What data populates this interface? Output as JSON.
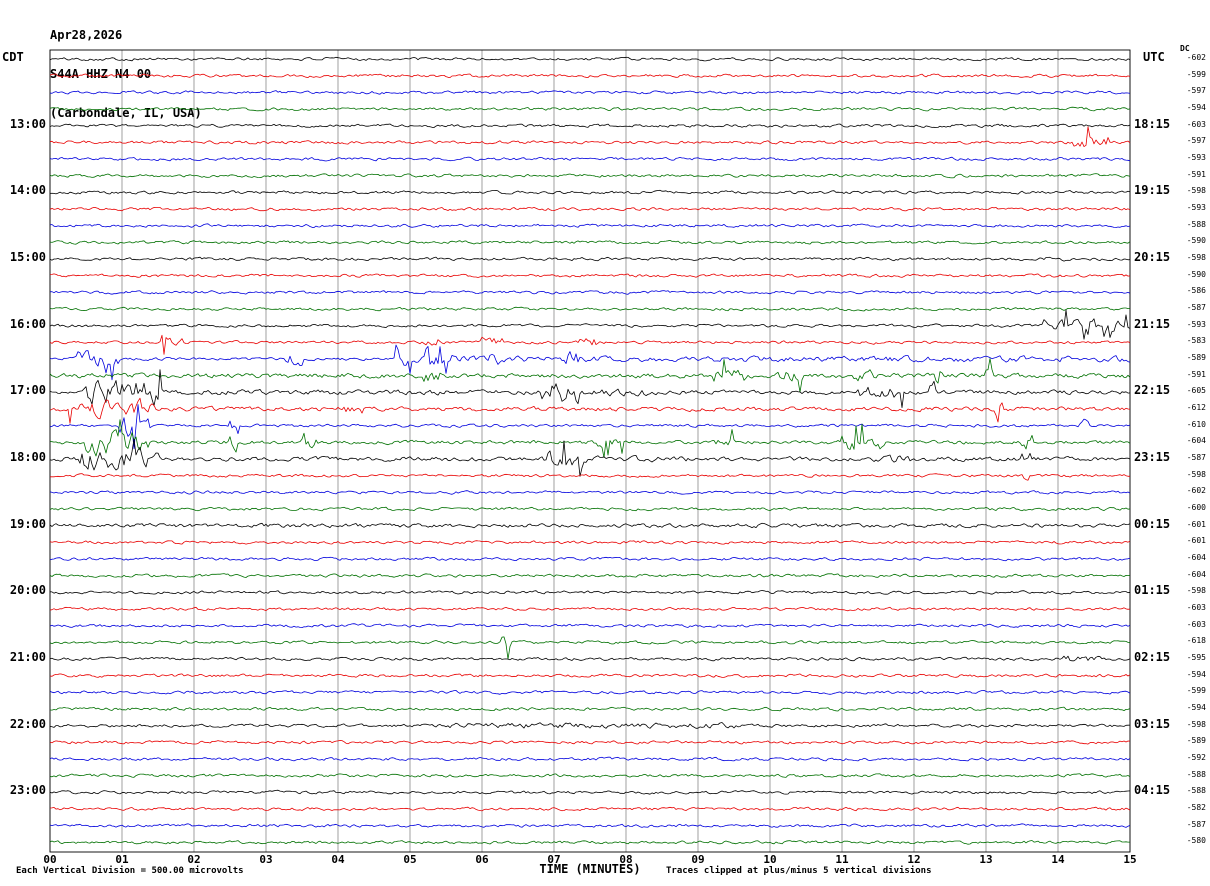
{
  "title": {
    "date": "Apr28,2026",
    "station": "S44A HHZ N4 00",
    "location": "(Carbondale, IL, USA)"
  },
  "axes": {
    "left_label": "CDT",
    "right_label": "UTC",
    "dc_header": "DC",
    "x_axis_label": "TIME (MINUTES)",
    "x_ticks": [
      "00",
      "01",
      "02",
      "03",
      "04",
      "05",
      "06",
      "07",
      "08",
      "09",
      "10",
      "11",
      "12",
      "13",
      "14",
      "15"
    ]
  },
  "footer": {
    "scale_note": "Each Vertical Division =  500.00 microvolts",
    "clip_note": "Traces clipped at plus/minus 5 vertical divisions"
  },
  "colors": {
    "black": "#000000",
    "red": "#e80000",
    "blue": "#0000dd",
    "green": "#007000",
    "grid": "#777777"
  },
  "chart_data": {
    "type": "line",
    "description": "Helicorder seismogram, 48 trace lines of 15 minutes each",
    "row_count": 48,
    "minutes_per_row": 15,
    "base_amp": 1,
    "color_cycle": [
      "black",
      "red",
      "blue",
      "green"
    ],
    "left_time_labels": [
      {
        "row": 4,
        "label": "13:00"
      },
      {
        "row": 8,
        "label": "14:00"
      },
      {
        "row": 12,
        "label": "15:00"
      },
      {
        "row": 16,
        "label": "16:00"
      },
      {
        "row": 20,
        "label": "17:00"
      },
      {
        "row": 24,
        "label": "18:00"
      },
      {
        "row": 28,
        "label": "19:00"
      },
      {
        "row": 32,
        "label": "20:00"
      },
      {
        "row": 36,
        "label": "21:00"
      },
      {
        "row": 40,
        "label": "22:00"
      },
      {
        "row": 44,
        "label": "23:00"
      }
    ],
    "right_time_labels": [
      {
        "row": 4,
        "label": "18:15"
      },
      {
        "row": 8,
        "label": "19:15"
      },
      {
        "row": 12,
        "label": "20:15"
      },
      {
        "row": 16,
        "label": "21:15"
      },
      {
        "row": 20,
        "label": "22:15"
      },
      {
        "row": 24,
        "label": "23:15"
      },
      {
        "row": 28,
        "label": "00:15"
      },
      {
        "row": 32,
        "label": "01:15"
      },
      {
        "row": 36,
        "label": "02:15"
      },
      {
        "row": 40,
        "label": "03:15"
      },
      {
        "row": 44,
        "label": "04:15"
      }
    ],
    "dc_values": [
      -602,
      -599,
      -597,
      -594,
      -603,
      -597,
      -593,
      -591,
      -598,
      -593,
      -588,
      -590,
      -598,
      -590,
      -586,
      -587,
      -593,
      -583,
      -589,
      -591,
      -605,
      -612,
      -610,
      -604,
      -587,
      -598,
      -602,
      -600,
      -601,
      -601,
      -604,
      -604,
      -598,
      -603,
      -603,
      -618,
      -595,
      -594,
      -599,
      -594,
      -598,
      -589,
      -592,
      -588,
      -588,
      -582,
      -587,
      -580
    ],
    "events": [
      {
        "row": 5,
        "s": 14.2,
        "e": 14.7,
        "a": 5
      },
      {
        "row": 12,
        "s": 13.8,
        "e": 14.1,
        "a": 2
      },
      {
        "row": 16,
        "s": 13.8,
        "e": 15.0,
        "a": 4
      },
      {
        "row": 17,
        "s": 1.55,
        "e": 1.85,
        "a": 5
      },
      {
        "row": 17,
        "s": 5.1,
        "e": 5.4,
        "a": 3.5
      },
      {
        "row": 17,
        "s": 6.0,
        "e": 6.3,
        "a": 3.5
      },
      {
        "row": 17,
        "s": 7.35,
        "e": 7.6,
        "a": 3.5
      },
      {
        "row": 18,
        "s": 0.35,
        "e": 0.95,
        "a": 6
      },
      {
        "row": 18,
        "s": 3.2,
        "e": 3.5,
        "a": 4
      },
      {
        "row": 18,
        "s": 4.8,
        "e": 5.0,
        "a": 5
      },
      {
        "row": 18,
        "s": 5.2,
        "e": 5.6,
        "a": 4.5
      },
      {
        "row": 18,
        "s": 6.05,
        "e": 6.25,
        "a": 4.5
      },
      {
        "row": 18,
        "s": 7.15,
        "e": 7.35,
        "a": 5.5
      },
      {
        "row": 18,
        "s": 5.0,
        "e": 15.0,
        "a": 2
      },
      {
        "row": 19,
        "s": 0.0,
        "e": 15.0,
        "a": 1.6
      },
      {
        "row": 19,
        "s": 5.15,
        "e": 5.45,
        "a": 4.5
      },
      {
        "row": 19,
        "s": 9.2,
        "e": 9.65,
        "a": 4.5
      },
      {
        "row": 19,
        "s": 10.1,
        "e": 10.45,
        "a": 4
      },
      {
        "row": 19,
        "s": 11.15,
        "e": 11.55,
        "a": 4
      },
      {
        "row": 19,
        "s": 12.25,
        "e": 12.4,
        "a": 7
      },
      {
        "row": 19,
        "s": 12.95,
        "e": 13.1,
        "a": 5.5
      },
      {
        "row": 20,
        "s": 0.45,
        "e": 1.6,
        "a": 8.5
      },
      {
        "row": 20,
        "s": 1.6,
        "e": 6.8,
        "a": 1.7
      },
      {
        "row": 20,
        "s": 6.8,
        "e": 7.35,
        "a": 7.5
      },
      {
        "row": 20,
        "s": 7.35,
        "e": 8.3,
        "a": 2.5
      },
      {
        "row": 20,
        "s": 11.2,
        "e": 11.85,
        "a": 4.5
      },
      {
        "row": 20,
        "s": 12.2,
        "e": 12.35,
        "a": 6.5
      },
      {
        "row": 20,
        "s": 8.3,
        "e": 15.0,
        "a": 1.4
      },
      {
        "row": 21,
        "s": 0.2,
        "e": 1.45,
        "a": 6
      },
      {
        "row": 21,
        "s": 3.95,
        "e": 4.35,
        "a": 3.5
      },
      {
        "row": 21,
        "s": 13.1,
        "e": 13.25,
        "a": 5
      },
      {
        "row": 21,
        "s": 0.0,
        "e": 15.0,
        "a": 1.4
      },
      {
        "row": 22,
        "s": 0.95,
        "e": 1.4,
        "a": 8
      },
      {
        "row": 22,
        "s": 2.5,
        "e": 2.62,
        "a": 6.5
      },
      {
        "row": 22,
        "s": 14.3,
        "e": 14.45,
        "a": 4.5
      },
      {
        "row": 23,
        "s": 0.5,
        "e": 1.4,
        "a": 8
      },
      {
        "row": 23,
        "s": 2.5,
        "e": 2.62,
        "a": 6.5
      },
      {
        "row": 23,
        "s": 3.5,
        "e": 3.72,
        "a": 4
      },
      {
        "row": 23,
        "s": 7.6,
        "e": 7.95,
        "a": 4
      },
      {
        "row": 23,
        "s": 9.2,
        "e": 9.55,
        "a": 4
      },
      {
        "row": 23,
        "s": 10.95,
        "e": 11.6,
        "a": 5.5
      },
      {
        "row": 23,
        "s": 13.5,
        "e": 13.66,
        "a": 6.5
      },
      {
        "row": 23,
        "s": 0.0,
        "e": 15.0,
        "a": 1.3
      },
      {
        "row": 24,
        "s": 0.4,
        "e": 1.5,
        "a": 7.5
      },
      {
        "row": 24,
        "s": 6.85,
        "e": 7.4,
        "a": 6.5
      },
      {
        "row": 24,
        "s": 7.4,
        "e": 9.0,
        "a": 2
      },
      {
        "row": 24,
        "s": 11.4,
        "e": 11.95,
        "a": 2.6
      },
      {
        "row": 24,
        "s": 13.5,
        "e": 13.62,
        "a": 4.5
      },
      {
        "row": 24,
        "s": 0.0,
        "e": 15.0,
        "a": 1.4
      },
      {
        "row": 25,
        "s": 13.5,
        "e": 13.6,
        "a": 3
      },
      {
        "row": 28,
        "s": 0.0,
        "e": 15.0,
        "a": 1.3
      },
      {
        "row": 35,
        "s": 6.25,
        "e": 6.4,
        "a": 5
      },
      {
        "row": 36,
        "s": 14.05,
        "e": 14.6,
        "a": 2.6
      },
      {
        "row": 40,
        "s": 5.5,
        "e": 9.5,
        "a": 1.8
      }
    ]
  }
}
